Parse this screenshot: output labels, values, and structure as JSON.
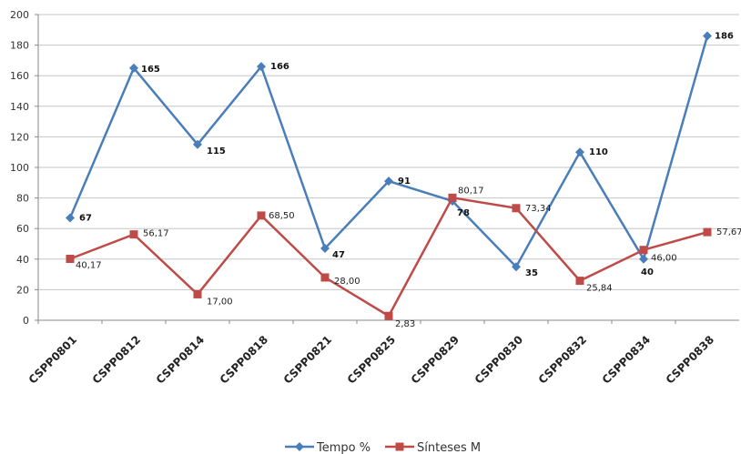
{
  "chart_data": {
    "type": "line",
    "categories": [
      "CSPP0801",
      "CSPP0812",
      "CSPP0814",
      "CSPP0818",
      "CSPP0821",
      "CSPP0825",
      "CSPP0829",
      "CSPP0830",
      "CSPP0832",
      "CSPP0834",
      "CSPP0838"
    ],
    "ylim": [
      0,
      200
    ],
    "yticks": [
      0,
      20,
      40,
      60,
      80,
      100,
      120,
      140,
      160,
      180,
      200
    ],
    "grid": true,
    "legend_position": "bottom",
    "series": [
      {
        "name": "Tempo %",
        "color": "#4a7ebb",
        "marker": "diamond",
        "values": [
          67,
          165,
          115,
          166,
          47,
          91,
          78,
          35,
          110,
          40,
          186
        ],
        "labels": [
          "67",
          "165",
          "115",
          "166",
          "47",
          "91",
          "78",
          "35",
          "110",
          "40",
          "186"
        ]
      },
      {
        "name": "Sínteses M",
        "color": "#be4b48",
        "marker": "square",
        "values": [
          40.17,
          56.17,
          17.0,
          68.5,
          28.0,
          2.83,
          80.17,
          73.34,
          25.84,
          46.0,
          57.67
        ],
        "labels": [
          "40,17",
          "56,17",
          "17,00",
          "68,50",
          "28,00",
          "2,83",
          "80,17",
          "73,34",
          "25,84",
          "46,00",
          "57,67"
        ]
      }
    ]
  }
}
